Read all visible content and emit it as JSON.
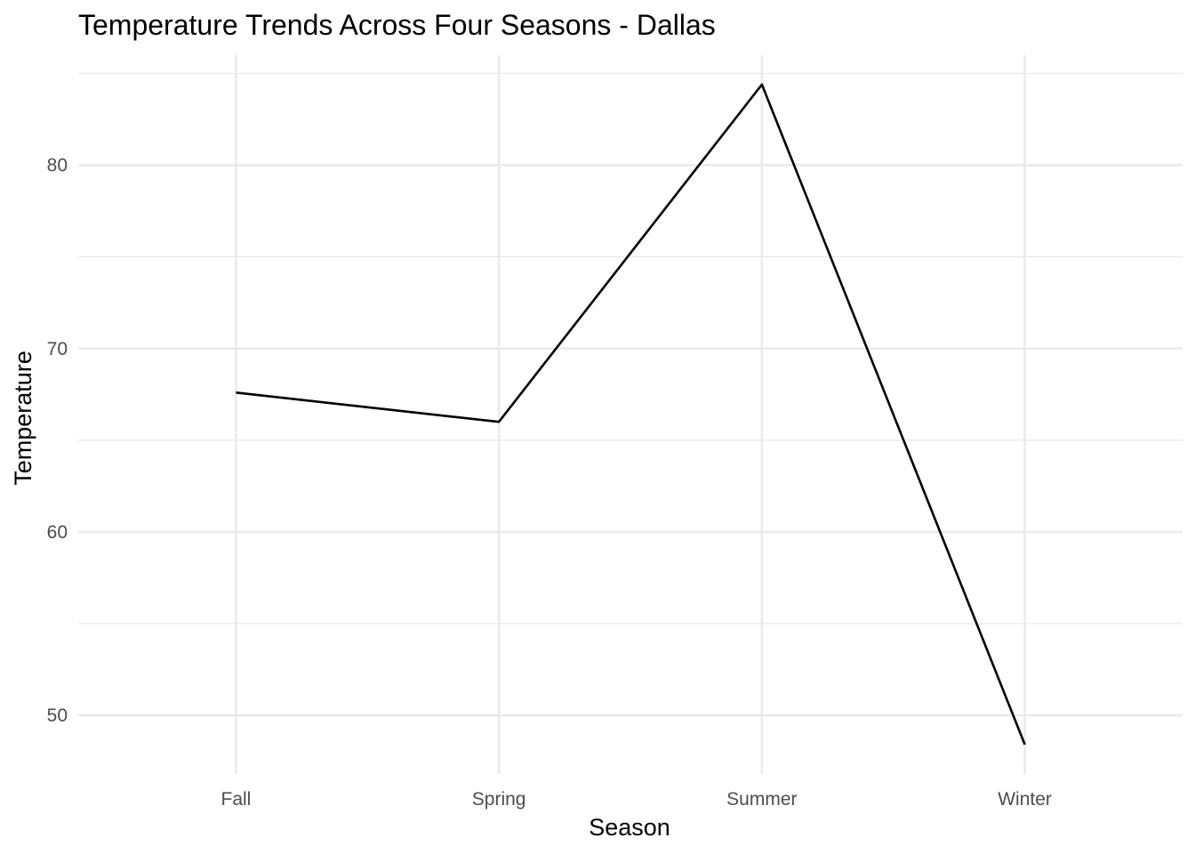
{
  "chart_data": {
    "type": "line",
    "title": "Temperature Trends Across Four Seasons - Dallas",
    "xlabel": "Season",
    "ylabel": "Temperature",
    "categories": [
      "Fall",
      "Spring",
      "Summer",
      "Winter"
    ],
    "values": [
      67.6,
      66.0,
      84.4,
      48.4
    ],
    "ylim": [
      46.8,
      86.0
    ],
    "y_ticks": [
      50,
      60,
      70,
      80
    ],
    "y_minor_ticks": [
      55,
      65,
      75,
      85
    ],
    "grid": true,
    "legend": "none",
    "colors": {
      "line": "#000000",
      "grid": "#ebebeb",
      "tick_text": "#4d4d4d"
    }
  }
}
